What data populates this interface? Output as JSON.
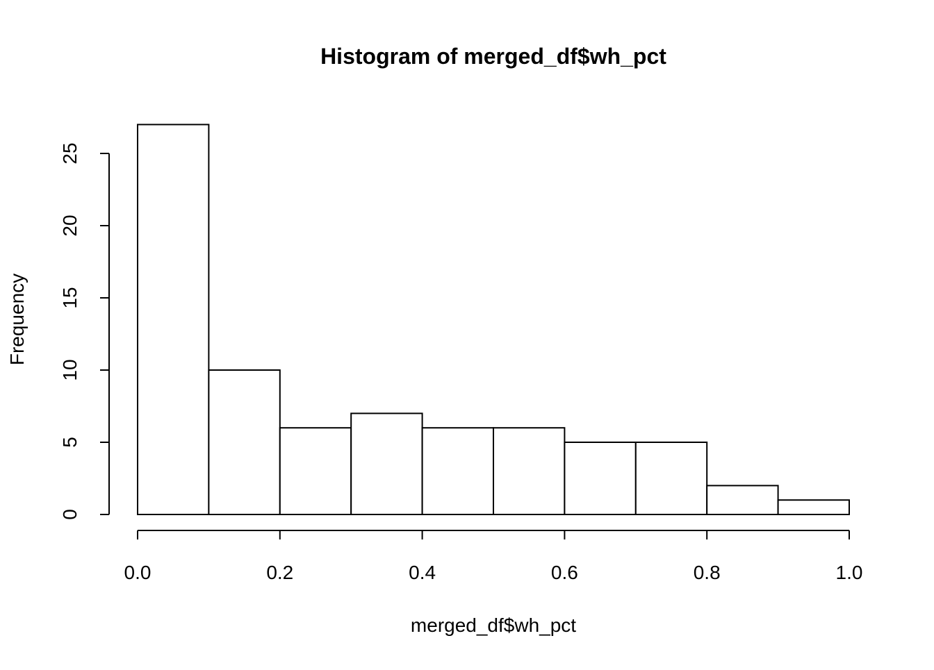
{
  "chart_data": {
    "type": "bar",
    "title": "Histogram of merged_df$wh_pct",
    "xlabel": "merged_df$wh_pct",
    "ylabel": "Frequency",
    "bins": [
      {
        "start": 0.0,
        "end": 0.1,
        "count": 27
      },
      {
        "start": 0.1,
        "end": 0.2,
        "count": 10
      },
      {
        "start": 0.2,
        "end": 0.3,
        "count": 6
      },
      {
        "start": 0.3,
        "end": 0.4,
        "count": 7
      },
      {
        "start": 0.4,
        "end": 0.5,
        "count": 6
      },
      {
        "start": 0.5,
        "end": 0.6,
        "count": 6
      },
      {
        "start": 0.6,
        "end": 0.7,
        "count": 5
      },
      {
        "start": 0.7,
        "end": 0.8,
        "count": 5
      },
      {
        "start": 0.8,
        "end": 0.9,
        "count": 2
      },
      {
        "start": 0.9,
        "end": 1.0,
        "count": 1
      }
    ],
    "x_ticks": [
      0.0,
      0.2,
      0.4,
      0.6,
      0.8,
      1.0
    ],
    "x_tick_labels": [
      "0.0",
      "0.2",
      "0.4",
      "0.6",
      "0.8",
      "1.0"
    ],
    "y_ticks": [
      0,
      5,
      10,
      15,
      20,
      25
    ],
    "y_tick_labels": [
      "0",
      "5",
      "10",
      "15",
      "20",
      "25"
    ],
    "xlim": [
      0.0,
      1.0
    ],
    "ylim": [
      0,
      27
    ],
    "grid": false,
    "legend": "none",
    "colors": {
      "bar_fill": "#ffffff",
      "bar_stroke": "#000000",
      "background": "#ffffff"
    }
  }
}
